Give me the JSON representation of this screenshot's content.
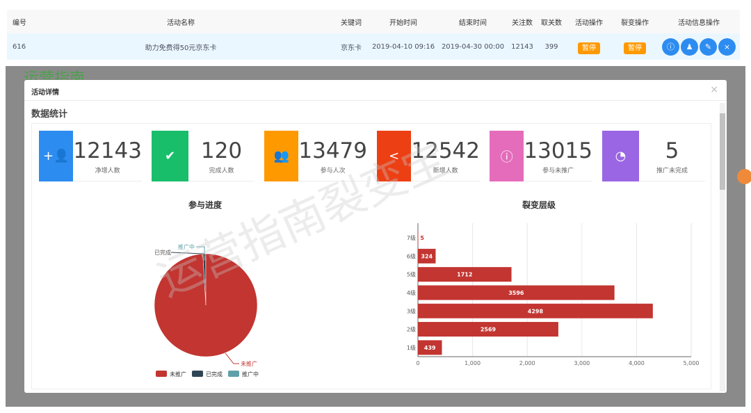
{
  "table": {
    "headers": [
      "编号",
      "活动名称",
      "关键词",
      "开始时间",
      "结束时间",
      "关注数",
      "取关数",
      "活动操作",
      "裂变操作",
      "活动信息操作"
    ],
    "row": {
      "id": "616",
      "name": "助力免费得50元京东卡",
      "keyword": "京东卡",
      "start": "2019-04-10 09:16",
      "end": "2019-04-30 00:00",
      "follow": "12143",
      "unfollow": "399",
      "activity_op": "暂停",
      "fission_op": "暂停"
    },
    "info_buttons": [
      "info-icon",
      "user-icon",
      "edit-icon",
      "close-icon"
    ]
  },
  "background": {
    "logo": "运营指南"
  },
  "modal": {
    "title": "活动详情",
    "close": "×",
    "section": "数据统计",
    "cards": [
      {
        "value": "12143",
        "label": "净增人数",
        "color": "#2d8cf0",
        "icon": "user-add-icon",
        "glyph": "+👤"
      },
      {
        "value": "120",
        "label": "完成人数",
        "color": "#19be6b",
        "icon": "check-circle-icon",
        "glyph": "✔"
      },
      {
        "value": "13479",
        "label": "参与人次",
        "color": "#ff9900",
        "icon": "group-icon",
        "glyph": "👥"
      },
      {
        "value": "12542",
        "label": "新增人数",
        "color": "#ed3f14",
        "icon": "share-icon",
        "glyph": "<"
      },
      {
        "value": "13015",
        "label": "参与未推广",
        "color": "#e46cbb",
        "icon": "info-circle-icon",
        "glyph": "ⓘ"
      },
      {
        "value": "5",
        "label": "推广未完成",
        "color": "#9a66e4",
        "icon": "pie-chart-icon",
        "glyph": "◔"
      }
    ]
  },
  "watermark": "运营指南裂变宝",
  "chart_data": [
    {
      "type": "pie",
      "title": "参与进度",
      "legend_placement": "bottom",
      "slices": [
        {
          "name": "未推广",
          "value": 13015,
          "color": "#c23531"
        },
        {
          "name": "已完成",
          "value": 120,
          "color": "#2f4554"
        },
        {
          "name": "推广中",
          "value": 5,
          "color": "#61a0a8"
        }
      ]
    },
    {
      "type": "bar",
      "orientation": "horizontal",
      "title": "裂变层级",
      "categories": [
        "1级",
        "2级",
        "3级",
        "4级",
        "5级",
        "6级",
        "7级"
      ],
      "values": [
        439,
        2569,
        4298,
        3596,
        1712,
        324,
        5
      ],
      "xlim": [
        0,
        5000
      ],
      "xticks": [
        "0",
        "1,000",
        "2,000",
        "3,000",
        "4,000",
        "5,000"
      ],
      "grid": true,
      "color": "#c23531"
    }
  ]
}
